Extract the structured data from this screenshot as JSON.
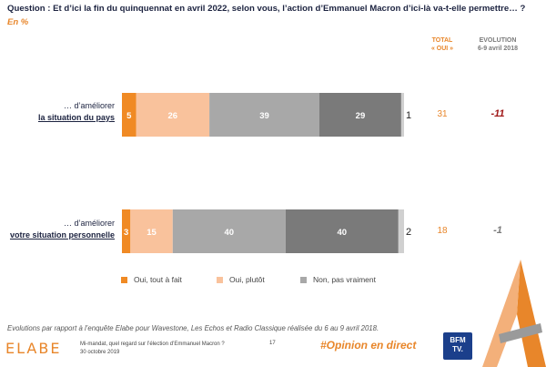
{
  "question": "Question : Et d’ici la fin du quinquennat en avril 2022, selon vous, l’action d’Emmanuel Macron d’ici-là va-t-elle permettre… ?",
  "unit": "En %",
  "headers": {
    "total_line1": "TOTAL",
    "total_line2": "« OUI »",
    "evo_line1": "EVOLUTION",
    "evo_line2": "6-9 avril 2018"
  },
  "rows": [
    {
      "label_line1": "… d’améliorer",
      "label_line2": "la situation du pays",
      "total": "31",
      "evolution": "-11"
    },
    {
      "label_line1": "… d’améliorer",
      "label_line2": "votre situation personnelle",
      "total": "18",
      "evolution": "-1"
    }
  ],
  "chart_data": {
    "type": "bar",
    "orientation": "horizontal-stacked",
    "categories": [
      "la situation du pays",
      "votre situation personnelle"
    ],
    "series": [
      {
        "name": "Oui, tout à fait",
        "values": [
          5,
          3
        ],
        "color": "#f08a24"
      },
      {
        "name": "Oui, plutôt",
        "values": [
          26,
          15
        ],
        "color": "#f9c29c"
      },
      {
        "name": "Non, pas vraiment",
        "values": [
          39,
          40
        ],
        "color": "#a8a8a8"
      },
      {
        "name": "",
        "values": [
          29,
          40
        ],
        "color": "#7a7a7a"
      },
      {
        "name": "",
        "values": [
          1,
          2
        ],
        "color": "#d0d0d0"
      }
    ],
    "xlim": [
      0,
      100
    ],
    "legend_position": "bottom"
  },
  "legend": [
    "Oui, tout à fait",
    "Oui, plutôt",
    "Non, pas vraiment"
  ],
  "colors": {
    "accent": "#e8862a",
    "negative": "#a01818",
    "neutral": "#7a7a7a"
  },
  "footnote": "Evolutions par rapport à l’enquête Elabe pour Wavestone, Les Echos et Radio Classique réalisée du 6 au 9 avril 2018.",
  "footer": {
    "logo": "ELABE",
    "line1": "Mi-mandat, quel regard sur l’élection d’Emmanuel Macron ?",
    "line2": "30 octobre 2019",
    "page": "17",
    "hashtag": "#Opinion en direct",
    "bfm_line1": "BFM",
    "bfm_line2": "TV."
  }
}
